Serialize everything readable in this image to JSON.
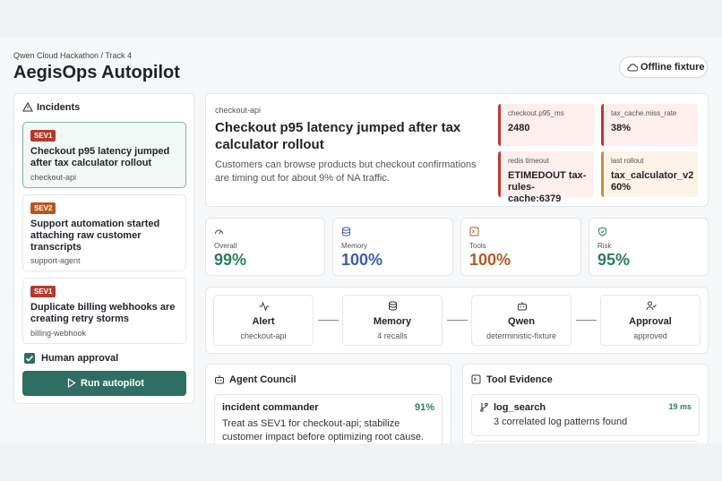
{
  "header": {
    "breadcrumb": "Qwen Cloud Hackathon / Track 4",
    "title": "AegisOps Autopilot",
    "fixture_button": "Offline fixture"
  },
  "incidents": {
    "title": "Incidents",
    "items": [
      {
        "severity": "SEV1",
        "title": "Checkout p95 latency jumped after tax calculator rollout",
        "service": "checkout-api"
      },
      {
        "severity": "SEV2",
        "title": "Support automation started attaching raw customer transcripts",
        "service": "support-agent"
      },
      {
        "severity": "SEV1",
        "title": "Duplicate billing webhooks are creating retry storms",
        "service": "billing-webhook"
      }
    ],
    "approval_label": "Human approval",
    "run_button": "Run autopilot"
  },
  "detail": {
    "service": "checkout-api",
    "title": "Checkout p95 latency jumped after tax calculator rollout",
    "description": "Customers can browse products but checkout confirmations are timing out for about 9% of NA traffic.",
    "signals": [
      {
        "label": "checkout.p95_ms",
        "value": "2480"
      },
      {
        "label": "tax_cache.miss_rate",
        "value": "38%"
      },
      {
        "label": "redis timeout",
        "value": "ETIMEDOUT tax-rules-cache:6379"
      },
      {
        "label": "last rollout",
        "value": "tax_calculator_v2 60%"
      }
    ]
  },
  "metrics": [
    {
      "label": "Overall",
      "value": "99%"
    },
    {
      "label": "Memory",
      "value": "100%"
    },
    {
      "label": "Tools",
      "value": "100%"
    },
    {
      "label": "Risk",
      "value": "95%"
    }
  ],
  "pipeline": [
    {
      "label": "Alert",
      "detail": "checkout-api"
    },
    {
      "label": "Memory",
      "detail": "4 recalls"
    },
    {
      "label": "Qwen",
      "detail": "deterministic-fixture"
    },
    {
      "label": "Approval",
      "detail": "approved"
    }
  ],
  "council": {
    "title": "Agent Council",
    "agents": [
      {
        "role": "incident commander",
        "confidence": "91%",
        "text": "Treat as SEV1 for checkout-api; stabilize customer impact before optimizing root cause."
      }
    ]
  },
  "evidence": {
    "title": "Tool Evidence",
    "items": [
      {
        "tool": "log_search",
        "duration": "19 ms",
        "summary": "3 correlated log patterns found"
      }
    ]
  }
}
